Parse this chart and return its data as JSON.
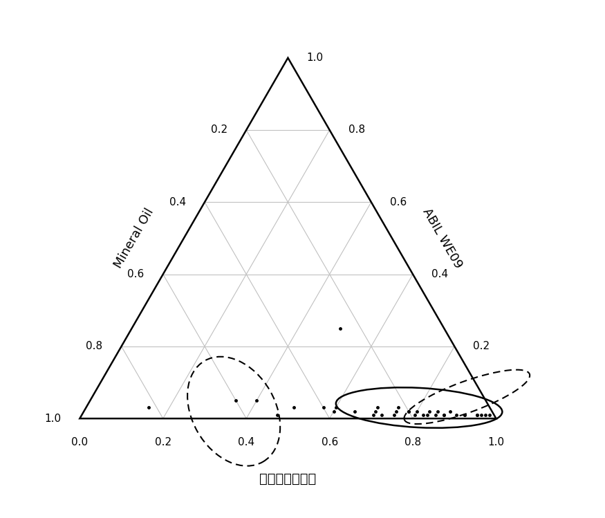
{
  "xlabel": "碘酸二乙基己酩",
  "left_label": "Mineral Oil",
  "right_label": "ABIL WE09",
  "triangle_color": "#000000",
  "grid_color": "#c0c0c0",
  "points_abc": [
    [
      0.5,
      0.25,
      0.25
    ],
    [
      0.15,
      0.82,
      0.03
    ],
    [
      0.35,
      0.6,
      0.05
    ],
    [
      0.4,
      0.55,
      0.05
    ],
    [
      0.5,
      0.47,
      0.03
    ],
    [
      0.47,
      0.52,
      0.01
    ],
    [
      0.57,
      0.4,
      0.03
    ],
    [
      0.6,
      0.37,
      0.03
    ],
    [
      0.7,
      0.27,
      0.03
    ],
    [
      0.75,
      0.22,
      0.03
    ],
    [
      0.78,
      0.2,
      0.02
    ],
    [
      0.8,
      0.18,
      0.02
    ],
    [
      0.83,
      0.15,
      0.02
    ],
    [
      0.85,
      0.13,
      0.02
    ],
    [
      0.88,
      0.1,
      0.02
    ],
    [
      0.7,
      0.28,
      0.02
    ],
    [
      0.75,
      0.23,
      0.02
    ],
    [
      0.78,
      0.2,
      0.02
    ],
    [
      0.8,
      0.19,
      0.01
    ],
    [
      0.82,
      0.17,
      0.01
    ],
    [
      0.85,
      0.14,
      0.01
    ],
    [
      0.87,
      0.12,
      0.01
    ],
    [
      0.9,
      0.09,
      0.01
    ],
    [
      0.92,
      0.07,
      0.01
    ],
    [
      0.95,
      0.04,
      0.01
    ],
    [
      0.6,
      0.38,
      0.02
    ],
    [
      0.65,
      0.33,
      0.02
    ],
    [
      0.7,
      0.29,
      0.01
    ],
    [
      0.72,
      0.27,
      0.01
    ],
    [
      0.75,
      0.24,
      0.01
    ],
    [
      0.83,
      0.16,
      0.01
    ],
    [
      0.87,
      0.12,
      0.01
    ],
    [
      0.92,
      0.07,
      0.01
    ],
    [
      0.95,
      0.04,
      0.01
    ],
    [
      0.96,
      0.03,
      0.01
    ],
    [
      0.97,
      0.02,
      0.01
    ],
    [
      0.98,
      0.01,
      0.01
    ]
  ],
  "tick_values": [
    0.0,
    0.2,
    0.4,
    0.6,
    0.8,
    1.0
  ],
  "tick_fontsize": 11,
  "label_fontsize": 13,
  "xlabel_fontsize": 14,
  "markersize": 5
}
